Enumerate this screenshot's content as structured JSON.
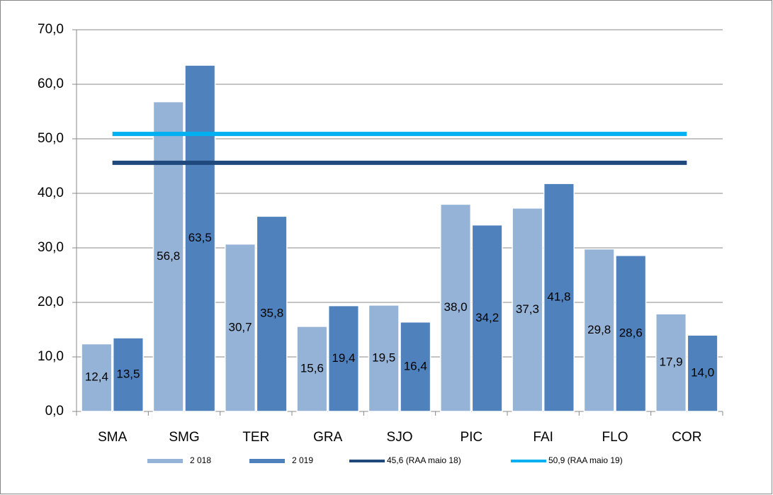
{
  "chart_data": {
    "type": "bar",
    "categories": [
      "SMA",
      "SMG",
      "TER",
      "GRA",
      "SJO",
      "PIC",
      "FAI",
      "FLO",
      "COR"
    ],
    "series": [
      {
        "name": "2 018",
        "color": "#95b3d7",
        "values": [
          12.4,
          56.8,
          30.7,
          15.6,
          19.5,
          38.0,
          37.3,
          29.8,
          17.9
        ],
        "value_labels": [
          "12,4",
          "56,8",
          "30,7",
          "15,6",
          "19,5",
          "38,0",
          "37,3",
          "29,8",
          "17,9"
        ]
      },
      {
        "name": "2 019",
        "color": "#4f81bd",
        "values": [
          13.5,
          63.5,
          35.8,
          19.4,
          16.4,
          34.2,
          41.8,
          28.6,
          14.0
        ],
        "value_labels": [
          "13,5",
          "63,5",
          "35,8",
          "19,4",
          "16,4",
          "34,2",
          "41,8",
          "28,6",
          "14,0"
        ]
      },
      {
        "name": "45,6 (RAA maio 18)",
        "type": "line",
        "color": "#1f497d",
        "values": [
          45.6,
          45.6,
          45.6,
          45.6,
          45.6,
          45.6,
          45.6,
          45.6,
          45.6
        ]
      },
      {
        "name": "50,9 (RAA maio 19)",
        "type": "line",
        "color": "#00b0f0",
        "values": [
          50.9,
          50.9,
          50.9,
          50.9,
          50.9,
          50.9,
          50.9,
          50.9,
          50.9
        ]
      }
    ],
    "ylim": [
      0,
      70
    ],
    "yticks": [
      {
        "value": 0,
        "label": "0,0"
      },
      {
        "value": 10,
        "label": "10,0"
      },
      {
        "value": 20,
        "label": "20,0"
      },
      {
        "value": 30,
        "label": "30,0"
      },
      {
        "value": 40,
        "label": "40,0"
      },
      {
        "value": 50,
        "label": "50,0"
      },
      {
        "value": 60,
        "label": "60,0"
      },
      {
        "value": 70,
        "label": "70,0"
      }
    ],
    "grid": true,
    "legend": "bottom"
  }
}
